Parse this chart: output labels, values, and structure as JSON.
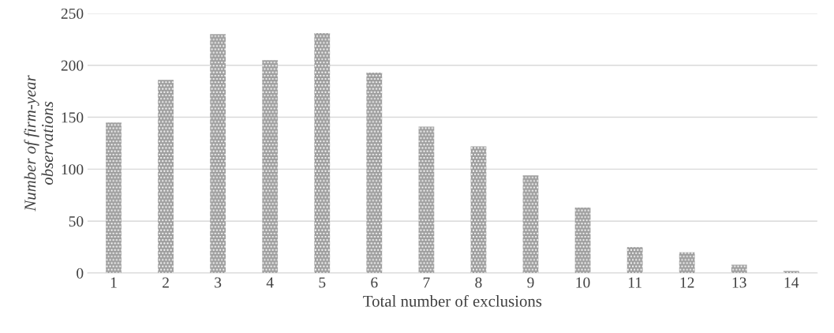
{
  "chart_data": {
    "type": "bar",
    "xlabel": "Total number of exclusions",
    "ylabel": "Number of firm-year\nobservations",
    "categories": [
      "1",
      "2",
      "3",
      "4",
      "5",
      "6",
      "7",
      "8",
      "9",
      "10",
      "11",
      "12",
      "13",
      "14"
    ],
    "values": [
      145,
      186,
      230,
      205,
      231,
      193,
      141,
      122,
      94,
      63,
      25,
      20,
      8,
      2
    ],
    "color": "#9e9e9e",
    "ylim": [
      0,
      250
    ],
    "yticks": [
      0,
      50,
      100,
      150,
      200,
      250
    ],
    "grid": "y",
    "legend": false
  }
}
